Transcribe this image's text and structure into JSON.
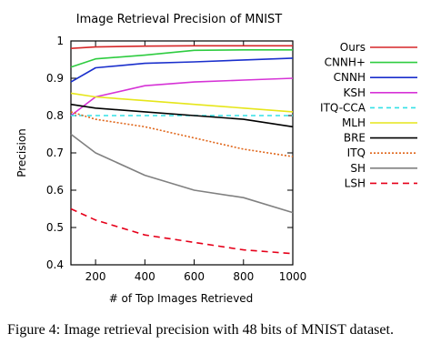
{
  "chart_data": {
    "type": "line",
    "title": "Image Retrieval Precision of MNIST",
    "xlabel": "# of Top Images Retrieved",
    "ylabel": "Precision",
    "xlim": [
      100,
      1000
    ],
    "ylim": [
      0.4,
      1.0
    ],
    "xticks": [
      200,
      400,
      600,
      800,
      1000
    ],
    "yticks": [
      0.4,
      0.5,
      0.6,
      0.7,
      0.8,
      0.9,
      1.0
    ],
    "ytick_labels": [
      "0.4",
      "0.5",
      "0.6",
      "0.7",
      "0.8",
      "0.9",
      "1"
    ],
    "legend_position": "right",
    "grid": false,
    "series": [
      {
        "name": "Ours",
        "color": "#d62728",
        "dash": "solid",
        "x": [
          100,
          200,
          400,
          600,
          800,
          1000
        ],
        "y": [
          0.98,
          0.984,
          0.986,
          0.987,
          0.987,
          0.987
        ]
      },
      {
        "name": "CNNH+",
        "color": "#2ecc40",
        "dash": "solid",
        "x": [
          100,
          200,
          400,
          600,
          800,
          1000
        ],
        "y": [
          0.93,
          0.952,
          0.962,
          0.975,
          0.976,
          0.976
        ]
      },
      {
        "name": "CNNH",
        "color": "#1a2fcc",
        "dash": "solid",
        "x": [
          100,
          200,
          400,
          600,
          800,
          1000
        ],
        "y": [
          0.89,
          0.928,
          0.94,
          0.944,
          0.949,
          0.954
        ]
      },
      {
        "name": "KSH",
        "color": "#d633d6",
        "dash": "solid",
        "x": [
          100,
          200,
          400,
          600,
          800,
          1000
        ],
        "y": [
          0.8,
          0.85,
          0.88,
          0.89,
          0.895,
          0.9
        ]
      },
      {
        "name": "ITQ-CCA",
        "color": "#33e0e6",
        "dash": "dashed",
        "x": [
          100,
          200,
          400,
          600,
          800,
          1000
        ],
        "y": [
          0.8,
          0.8,
          0.8,
          0.8,
          0.8,
          0.8
        ]
      },
      {
        "name": "MLH",
        "color": "#e6e61a",
        "dash": "solid",
        "x": [
          100,
          200,
          400,
          600,
          800,
          1000
        ],
        "y": [
          0.86,
          0.85,
          0.84,
          0.83,
          0.82,
          0.81
        ]
      },
      {
        "name": "BRE",
        "color": "#000000",
        "dash": "solid",
        "x": [
          100,
          200,
          400,
          600,
          800,
          1000
        ],
        "y": [
          0.83,
          0.82,
          0.81,
          0.8,
          0.79,
          0.77
        ]
      },
      {
        "name": "ITQ",
        "color": "#e0661a",
        "dash": "dotted",
        "x": [
          100,
          200,
          400,
          600,
          800,
          1000
        ],
        "y": [
          0.81,
          0.79,
          0.77,
          0.74,
          0.71,
          0.69
        ]
      },
      {
        "name": "SH",
        "color": "#808080",
        "dash": "solid",
        "x": [
          100,
          200,
          400,
          600,
          800,
          1000
        ],
        "y": [
          0.75,
          0.7,
          0.64,
          0.6,
          0.58,
          0.54
        ]
      },
      {
        "name": "LSH",
        "color": "#e6001a",
        "dash": "bigdash",
        "x": [
          100,
          200,
          400,
          600,
          800,
          1000
        ],
        "y": [
          0.55,
          0.52,
          0.48,
          0.46,
          0.44,
          0.43
        ]
      }
    ]
  },
  "caption": "Figure 4: Image retrieval precision with 48 bits of MNIST dataset."
}
